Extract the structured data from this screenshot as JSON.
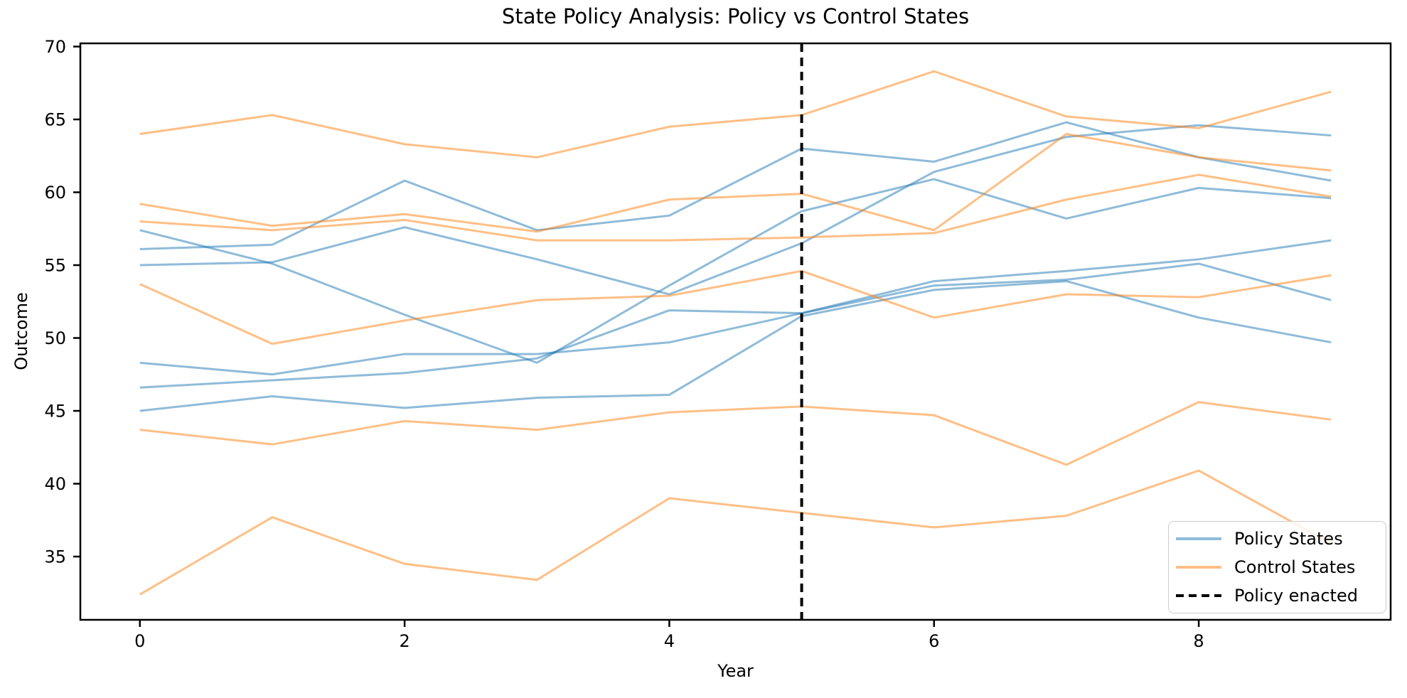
{
  "chart_data": {
    "type": "line",
    "title": "State Policy Analysis: Policy vs Control States",
    "xlabel": "Year",
    "ylabel": "Outcome",
    "x": [
      0,
      1,
      2,
      3,
      4,
      5,
      6,
      7,
      8,
      9
    ],
    "xticks": [
      0,
      2,
      4,
      6,
      8
    ],
    "yticks": [
      35,
      40,
      45,
      50,
      55,
      60,
      65,
      70
    ],
    "xlim": [
      -0.45,
      9.45
    ],
    "ylim": [
      30.66,
      70.22
    ],
    "grid": false,
    "colors": {
      "policy": "#1f77b4",
      "control": "#ff7f0e",
      "vline": "#000000",
      "line_alpha": 0.5
    },
    "vline": {
      "x": 5,
      "style": "dashed",
      "label": "Policy enacted"
    },
    "legend": {
      "position": "lower right",
      "entries": [
        {
          "label": "Policy States",
          "color": "#1f77b4",
          "style": "solid"
        },
        {
          "label": "Control States",
          "color": "#ff7f0e",
          "style": "solid"
        },
        {
          "label": "Policy enacted",
          "color": "#000000",
          "style": "dashed"
        }
      ]
    },
    "series": [
      {
        "group": "policy",
        "values": [
          57.4,
          55.1,
          51.6,
          48.3,
          53.6,
          58.7,
          60.9,
          58.2,
          60.3,
          59.6
        ]
      },
      {
        "group": "policy",
        "values": [
          56.1,
          56.4,
          60.8,
          57.4,
          58.4,
          63.0,
          62.1,
          64.8,
          62.4,
          60.8
        ]
      },
      {
        "group": "policy",
        "values": [
          55.0,
          55.2,
          57.6,
          55.4,
          53.0,
          56.5,
          61.4,
          63.8,
          64.6,
          63.9
        ]
      },
      {
        "group": "policy",
        "values": [
          48.3,
          47.5,
          48.9,
          48.9,
          49.7,
          51.7,
          53.9,
          54.6,
          55.4,
          56.7
        ]
      },
      {
        "group": "policy",
        "values": [
          46.6,
          47.1,
          47.6,
          48.6,
          51.9,
          51.7,
          53.6,
          54.0,
          55.1,
          52.6
        ]
      },
      {
        "group": "policy",
        "values": [
          45.0,
          46.0,
          45.2,
          45.9,
          46.1,
          51.5,
          53.3,
          53.9,
          51.4,
          49.7
        ]
      },
      {
        "group": "control",
        "values": [
          64.0,
          65.3,
          63.3,
          62.4,
          64.5,
          65.3,
          68.3,
          65.2,
          64.4,
          66.9
        ]
      },
      {
        "group": "control",
        "values": [
          59.2,
          57.7,
          58.5,
          57.3,
          59.5,
          59.9,
          57.4,
          64.0,
          62.4,
          61.5
        ]
      },
      {
        "group": "control",
        "values": [
          58.0,
          57.4,
          58.1,
          56.7,
          56.7,
          56.9,
          57.2,
          59.5,
          61.2,
          59.7
        ]
      },
      {
        "group": "control",
        "values": [
          53.7,
          49.6,
          51.2,
          52.6,
          52.9,
          54.6,
          51.4,
          53.0,
          52.8,
          54.3
        ]
      },
      {
        "group": "control",
        "values": [
          43.7,
          42.7,
          44.3,
          43.7,
          44.9,
          45.3,
          44.7,
          41.3,
          45.6,
          44.4
        ]
      },
      {
        "group": "control",
        "values": [
          32.4,
          37.7,
          34.5,
          33.4,
          39.0,
          38.0,
          37.0,
          37.8,
          40.9,
          35.9
        ]
      }
    ]
  }
}
